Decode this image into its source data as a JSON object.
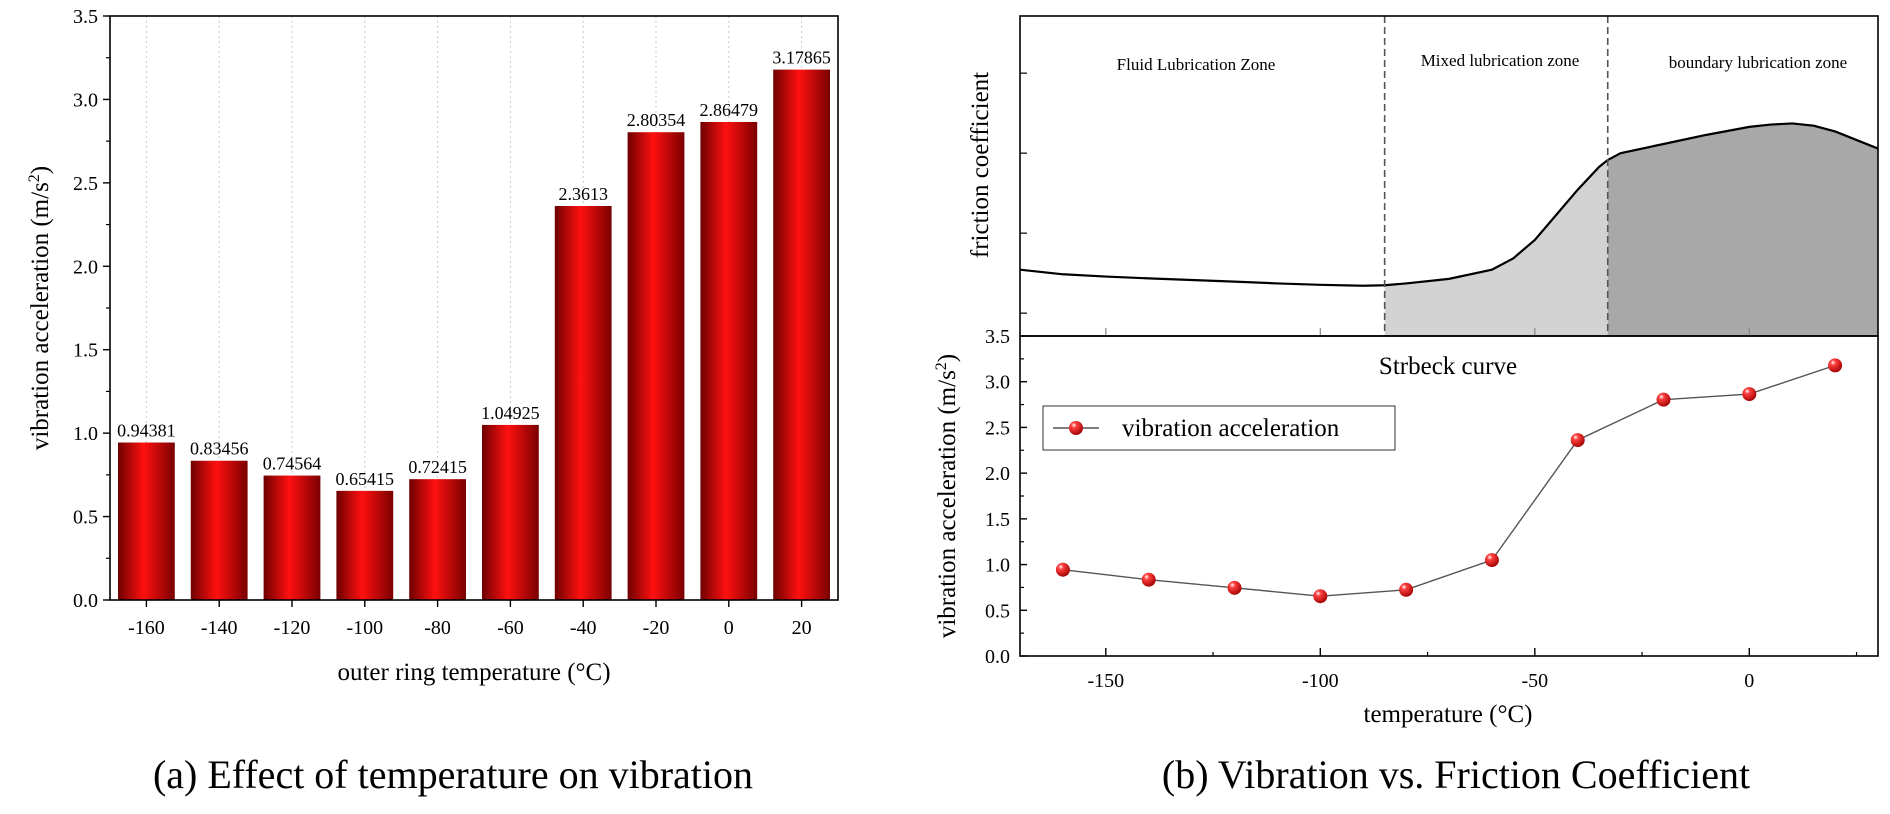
{
  "chart_data": [
    {
      "type": "bar",
      "categories": [
        "-160",
        "-140",
        "-120",
        "-100",
        "-80",
        "-60",
        "-40",
        "-20",
        "0",
        "20"
      ],
      "values": [
        0.94381,
        0.83456,
        0.74564,
        0.65415,
        0.72415,
        1.04925,
        2.3613,
        2.80354,
        2.86479,
        3.17865
      ],
      "data_labels": [
        "0.94381",
        "0.83456",
        "0.74564",
        "0.65415",
        "0.72415",
        "1.04925",
        "2.3613",
        "2.80354",
        "2.86479",
        "3.17865"
      ],
      "xlabel": "outer ring temperature (°C)",
      "ylabel_main": "vibration acceleration (m/s",
      "ylabel_sup": "2",
      "ylabel_end": ")",
      "ylim": [
        0,
        3.5
      ],
      "yticks": [
        "0.0",
        "0.5",
        "1.0",
        "1.5",
        "2.0",
        "2.5",
        "3.0",
        "3.5"
      ],
      "grid": "vertical dotted",
      "bar_color": "#e00000",
      "caption": "(a) Effect of temperature on vibration"
    },
    {
      "type": "area",
      "panel": "top",
      "ylabel": "friction coefficient",
      "zones": [
        "Fluid Lubrication Zone",
        "Mixed lubrication zone",
        "boundary lubrication zone"
      ],
      "zone_boundaries": [
        -85,
        -33
      ],
      "xlim": [
        -170,
        30
      ],
      "curve_x": [
        -170,
        -160,
        -150,
        -140,
        -130,
        -120,
        -110,
        -100,
        -90,
        -85,
        -80,
        -70,
        -60,
        -55,
        -50,
        -45,
        -40,
        -35,
        -33,
        -30,
        -20,
        -10,
        0,
        5,
        10,
        15,
        20,
        30
      ],
      "curve_y": [
        0.79,
        0.77,
        0.76,
        0.752,
        0.745,
        0.738,
        0.73,
        0.724,
        0.72,
        0.722,
        0.73,
        0.75,
        0.79,
        0.84,
        0.92,
        1.03,
        1.14,
        1.24,
        1.27,
        1.3,
        1.34,
        1.38,
        1.415,
        1.425,
        1.43,
        1.42,
        1.395,
        1.32
      ],
      "zone_colors": [
        "#ffffff",
        "#d3d3d3",
        "#a8a8a8"
      ]
    },
    {
      "type": "line",
      "panel": "bottom",
      "title": "Strbeck curve",
      "series": [
        {
          "name": "vibration acceleration",
          "x": [
            -160,
            -140,
            -120,
            -100,
            -80,
            -60,
            -40,
            -20,
            0,
            20
          ],
          "y": [
            0.94381,
            0.83456,
            0.74564,
            0.65415,
            0.72415,
            1.04925,
            2.3613,
            2.80354,
            2.86479,
            3.17865
          ]
        }
      ],
      "xlabel": "temperature (°C)",
      "ylabel_main": "vibration acceleration (m/s",
      "ylabel_sup": "2",
      "ylabel_end": ")",
      "xlim": [
        -170,
        30
      ],
      "ylim": [
        0,
        3.5
      ],
      "xticks": [
        -150,
        -100,
        -50,
        0
      ],
      "xtick_labels": [
        "-150",
        "-100",
        "-50",
        "0"
      ],
      "yticks": [
        "0.0",
        "0.5",
        "1.0",
        "1.5",
        "2.0",
        "2.5",
        "3.0",
        "3.5"
      ],
      "legend": "top-left",
      "marker_color": "#ee0000",
      "caption": "(b) Vibration vs. Friction Coefficient"
    }
  ]
}
